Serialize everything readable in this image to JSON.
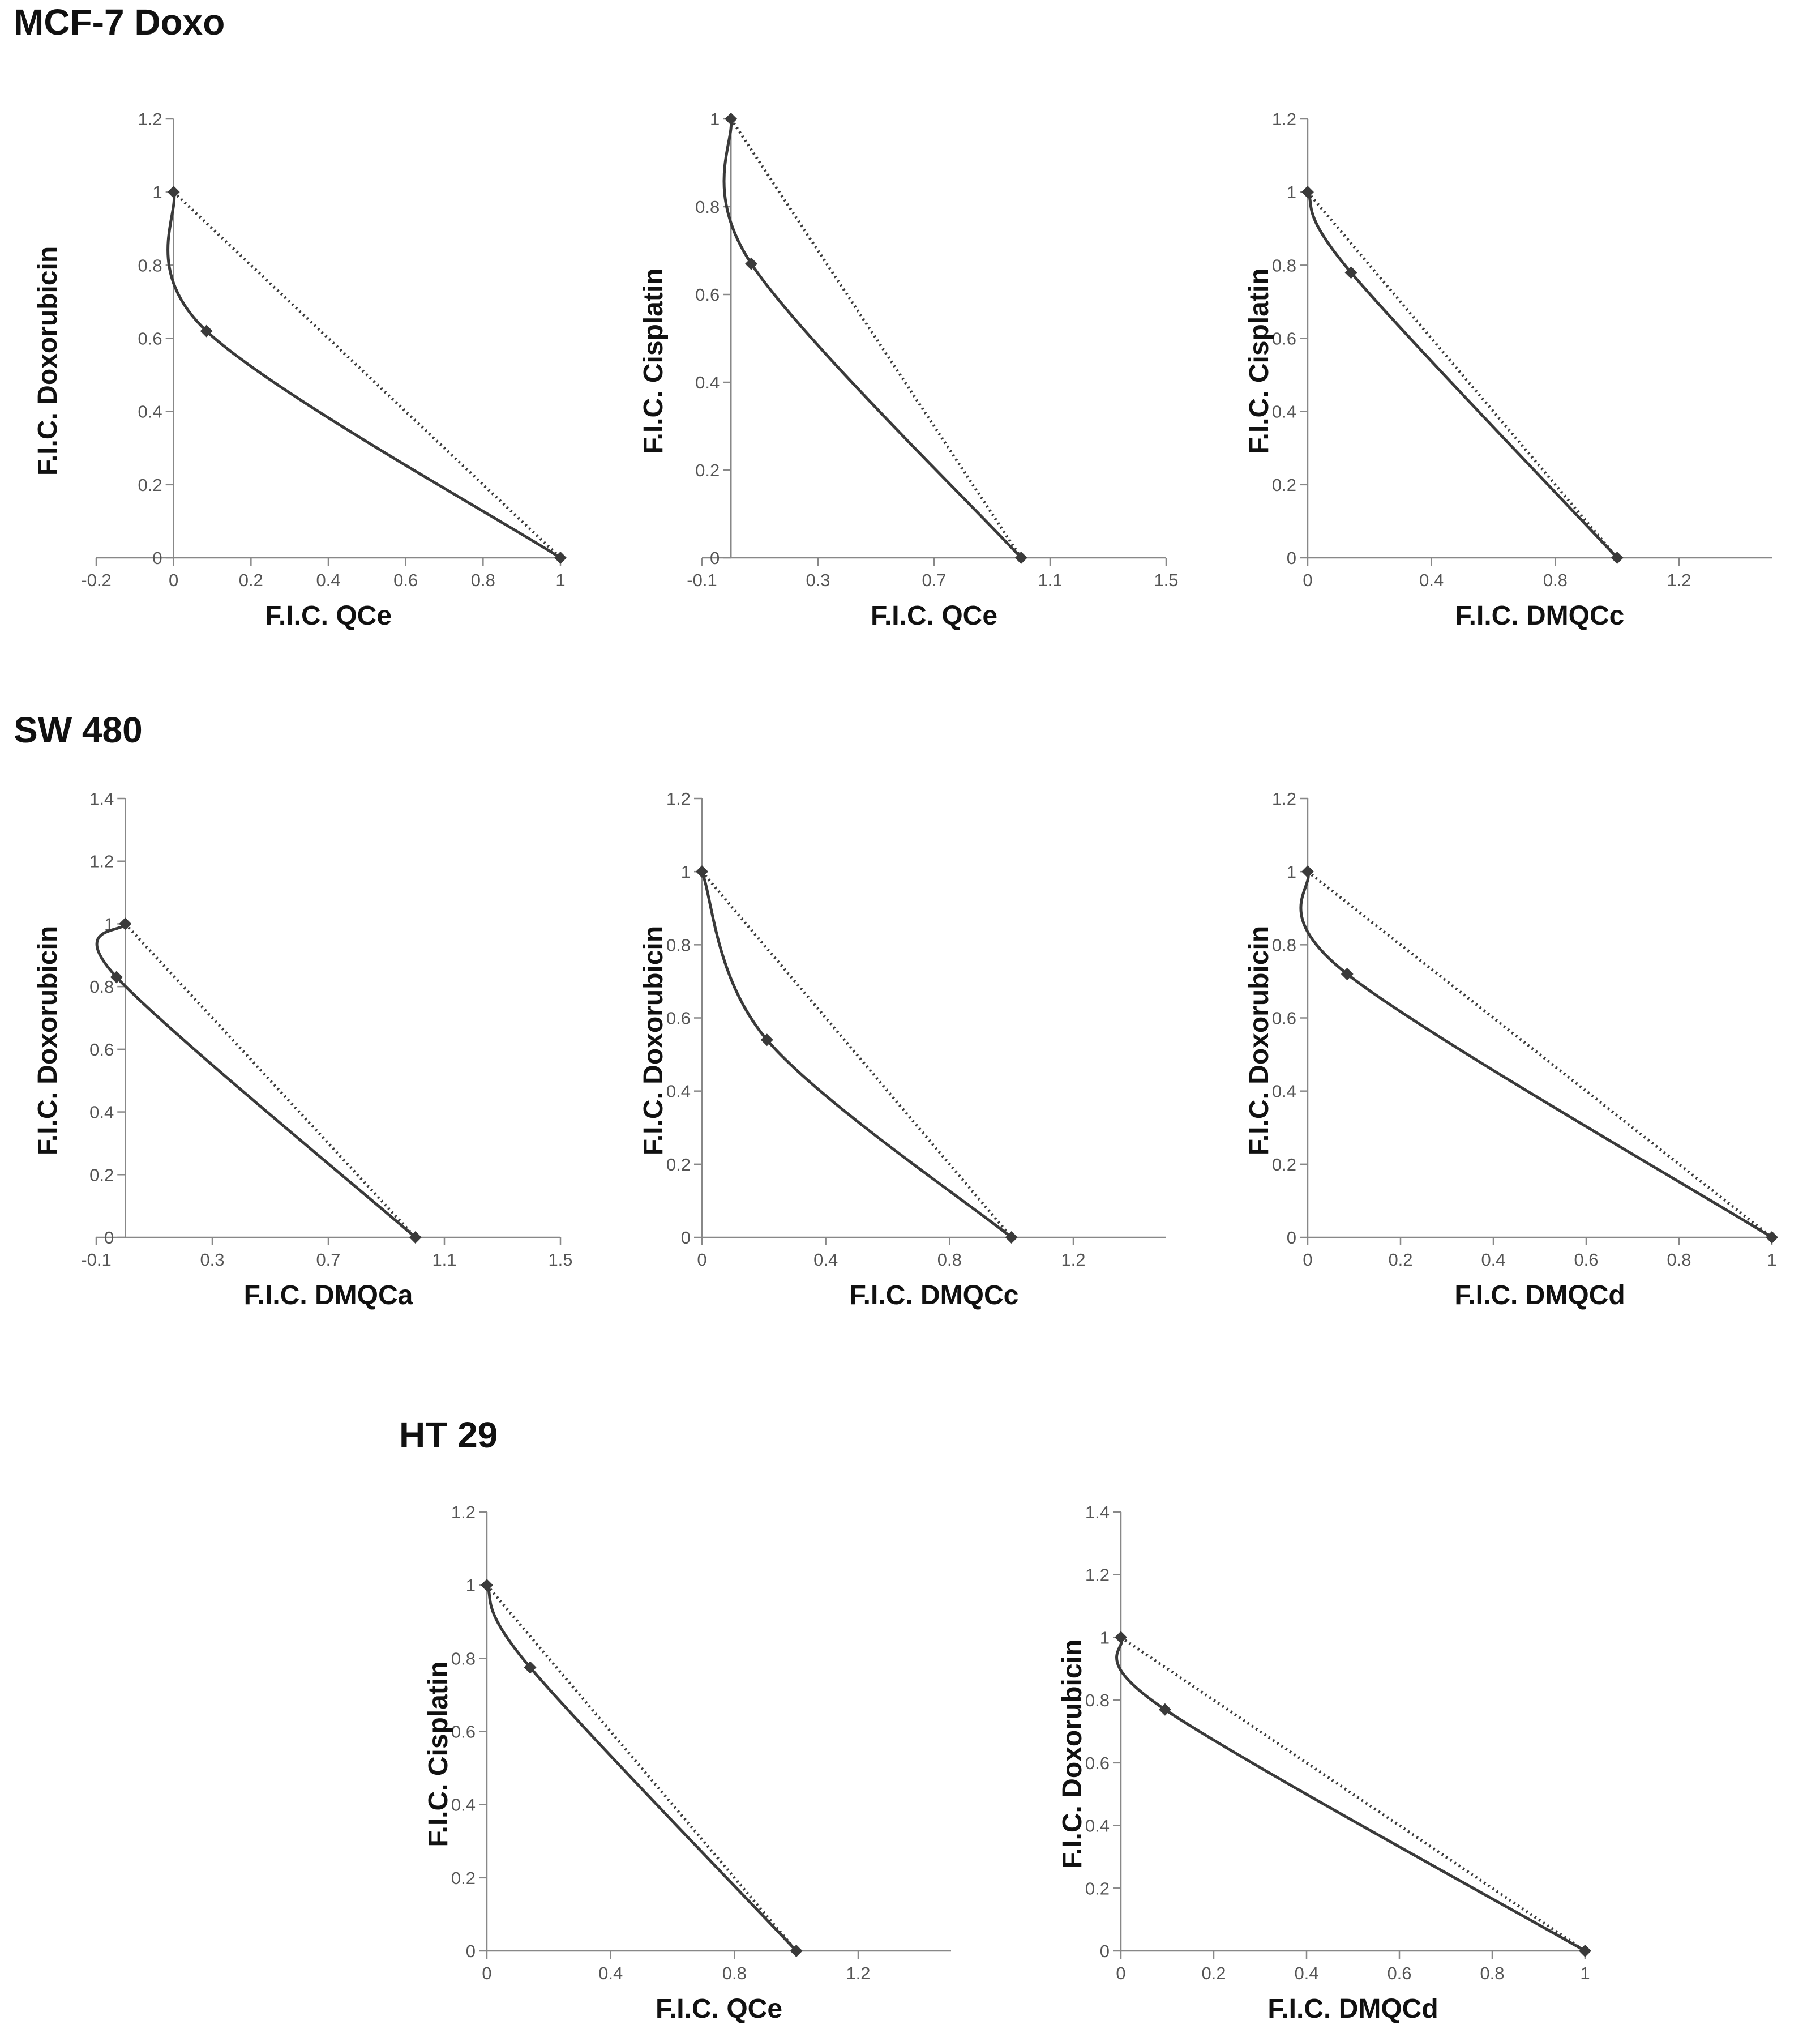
{
  "sections": [
    {
      "title": "MCF-7 Doxo"
    },
    {
      "title": "SW 480"
    },
    {
      "title": "HT 29"
    }
  ],
  "chart_data": [
    {
      "type": "line",
      "section": "MCF-7 Doxo",
      "xlabel": "F.I.C. QCe",
      "ylabel": "F.I.C. Doxorubicin",
      "xlim": [
        -0.2,
        1
      ],
      "ylim": [
        0,
        1.2
      ],
      "xticks": [
        "-0.2",
        "0",
        "0.2",
        "0.4",
        "0.6",
        "0.8",
        "1"
      ],
      "xtick_values": [
        -0.2,
        0,
        0.2,
        0.4,
        0.6,
        0.8,
        1
      ],
      "yticks": [
        "0",
        "0.2",
        "0.4",
        "0.6",
        "0.8",
        "1",
        "1.2"
      ],
      "ytick_values": [
        0,
        0.2,
        0.4,
        0.6,
        0.8,
        1,
        1.2
      ],
      "isobole": [
        [
          0,
          1
        ],
        [
          0.085,
          0.62
        ],
        [
          1,
          0
        ]
      ],
      "additivity_line": [
        [
          0,
          1
        ],
        [
          1,
          0
        ]
      ],
      "grid": false
    },
    {
      "type": "line",
      "section": "MCF-7 Doxo",
      "xlabel": "F.I.C. QCe",
      "ylabel": "F.I.C. Cisplatin",
      "xlim": [
        -0.1,
        1.5
      ],
      "ylim": [
        0,
        1
      ],
      "xticks": [
        "-0.1",
        "0.3",
        "0.7",
        "1.1",
        "1.5"
      ],
      "xtick_values": [
        -0.1,
        0.3,
        0.7,
        1.1,
        1.5
      ],
      "yticks": [
        "0",
        "0.2",
        "0.4",
        "0.6",
        "0.8",
        "1"
      ],
      "ytick_values": [
        0,
        0.2,
        0.4,
        0.6,
        0.8,
        1
      ],
      "isobole": [
        [
          0,
          1
        ],
        [
          0.07,
          0.67
        ],
        [
          1,
          0
        ]
      ],
      "additivity_line": [
        [
          0,
          1
        ],
        [
          1,
          0
        ]
      ],
      "grid": false
    },
    {
      "type": "line",
      "section": "MCF-7 Doxo",
      "xlabel": "F.I.C. DMQCc",
      "ylabel": "F.I.C. Cisplatin",
      "xlim": [
        0,
        1.5
      ],
      "ylim": [
        0,
        1.2
      ],
      "xticks": [
        "0",
        "0.4",
        "0.8",
        "1.2"
      ],
      "xtick_values": [
        0,
        0.4,
        0.8,
        1.2
      ],
      "yticks": [
        "0",
        "0.2",
        "0.4",
        "0.6",
        "0.8",
        "1",
        "1.2"
      ],
      "ytick_values": [
        0,
        0.2,
        0.4,
        0.6,
        0.8,
        1,
        1.2
      ],
      "isobole": [
        [
          0,
          1
        ],
        [
          0.14,
          0.78
        ],
        [
          1,
          0
        ]
      ],
      "additivity_line": [
        [
          0,
          1
        ],
        [
          1,
          0
        ]
      ],
      "grid": false
    },
    {
      "type": "line",
      "section": "SW 480",
      "xlabel": "F.I.C. DMQCa",
      "ylabel": "F.I.C. Doxorubicin",
      "xlim": [
        -0.1,
        1.5
      ],
      "ylim": [
        0,
        1.4
      ],
      "xticks": [
        "-0.1",
        "0.3",
        "0.7",
        "1.1",
        "1.5"
      ],
      "xtick_values": [
        -0.1,
        0.3,
        0.7,
        1.1,
        1.5
      ],
      "yticks": [
        "0",
        "0.2",
        "0.4",
        "0.6",
        "0.8",
        "1",
        "1.2",
        "1.4"
      ],
      "ytick_values": [
        0,
        0.2,
        0.4,
        0.6,
        0.8,
        1,
        1.2,
        1.4
      ],
      "isobole": [
        [
          0,
          1
        ],
        [
          -0.03,
          0.83
        ],
        [
          1,
          0
        ]
      ],
      "additivity_line": [
        [
          0,
          1
        ],
        [
          1,
          0
        ]
      ],
      "grid": false
    },
    {
      "type": "line",
      "section": "SW 480",
      "xlabel": "F.I.C. DMQCc",
      "ylabel": "F.I.C. Doxorubicin",
      "xlim": [
        0,
        1.5
      ],
      "ylim": [
        0,
        1.2
      ],
      "xticks": [
        "0",
        "0.4",
        "0.8",
        "1.2"
      ],
      "xtick_values": [
        0,
        0.4,
        0.8,
        1.2
      ],
      "yticks": [
        "0",
        "0.2",
        "0.4",
        "0.6",
        "0.8",
        "1",
        "1.2"
      ],
      "ytick_values": [
        0,
        0.2,
        0.4,
        0.6,
        0.8,
        1,
        1.2
      ],
      "isobole": [
        [
          0,
          1
        ],
        [
          0.21,
          0.54
        ],
        [
          1,
          0
        ]
      ],
      "additivity_line": [
        [
          0,
          1
        ],
        [
          1,
          0
        ]
      ],
      "grid": false
    },
    {
      "type": "line",
      "section": "SW 480",
      "xlabel": "F.I.C. DMQCd",
      "ylabel": "F.I.C. Doxorubicin",
      "xlim": [
        0,
        1
      ],
      "ylim": [
        0,
        1.2
      ],
      "xticks": [
        "0",
        "0.2",
        "0.4",
        "0.6",
        "0.8",
        "1"
      ],
      "xtick_values": [
        0,
        0.2,
        0.4,
        0.6,
        0.8,
        1
      ],
      "yticks": [
        "0",
        "0.2",
        "0.4",
        "0.6",
        "0.8",
        "1",
        "1.2"
      ],
      "ytick_values": [
        0,
        0.2,
        0.4,
        0.6,
        0.8,
        1,
        1.2
      ],
      "isobole": [
        [
          0,
          1
        ],
        [
          0.085,
          0.72
        ],
        [
          1,
          0
        ]
      ],
      "additivity_line": [
        [
          0,
          1
        ],
        [
          1,
          0
        ]
      ],
      "grid": false
    },
    {
      "type": "line",
      "section": "HT 29",
      "xlabel": "F.I.C. QCe",
      "ylabel": "F.I.C. Cisplatin",
      "xlim": [
        0,
        1.5
      ],
      "ylim": [
        0,
        1.2
      ],
      "xticks": [
        "0",
        "0.4",
        "0.8",
        "1.2"
      ],
      "xtick_values": [
        0,
        0.4,
        0.8,
        1.2
      ],
      "yticks": [
        "0",
        "0.2",
        "0.4",
        "0.6",
        "0.8",
        "1",
        "1.2"
      ],
      "ytick_values": [
        0,
        0.2,
        0.4,
        0.6,
        0.8,
        1,
        1.2
      ],
      "isobole": [
        [
          0,
          1
        ],
        [
          0.14,
          0.775
        ],
        [
          1,
          0
        ]
      ],
      "additivity_line": [
        [
          0,
          1
        ],
        [
          1,
          0
        ]
      ],
      "grid": false
    },
    {
      "type": "line",
      "section": "HT 29",
      "xlabel": "F.I.C. DMQCd",
      "ylabel": "F.I.C. Doxorubicin",
      "xlim": [
        0,
        1
      ],
      "ylim": [
        0,
        1.4
      ],
      "xticks": [
        "0",
        "0.2",
        "0.4",
        "0.6",
        "0.8",
        "1"
      ],
      "xtick_values": [
        0,
        0.2,
        0.4,
        0.6,
        0.8,
        1
      ],
      "yticks": [
        "0",
        "0.2",
        "0.4",
        "0.6",
        "0.8",
        "1",
        "1.2",
        "1.4"
      ],
      "ytick_values": [
        0,
        0.2,
        0.4,
        0.6,
        0.8,
        1,
        1.2,
        1.4
      ],
      "isobole": [
        [
          0,
          1
        ],
        [
          0.095,
          0.77
        ],
        [
          1,
          0
        ]
      ],
      "additivity_line": [
        [
          0,
          1
        ],
        [
          1,
          0
        ]
      ],
      "grid": false
    }
  ]
}
